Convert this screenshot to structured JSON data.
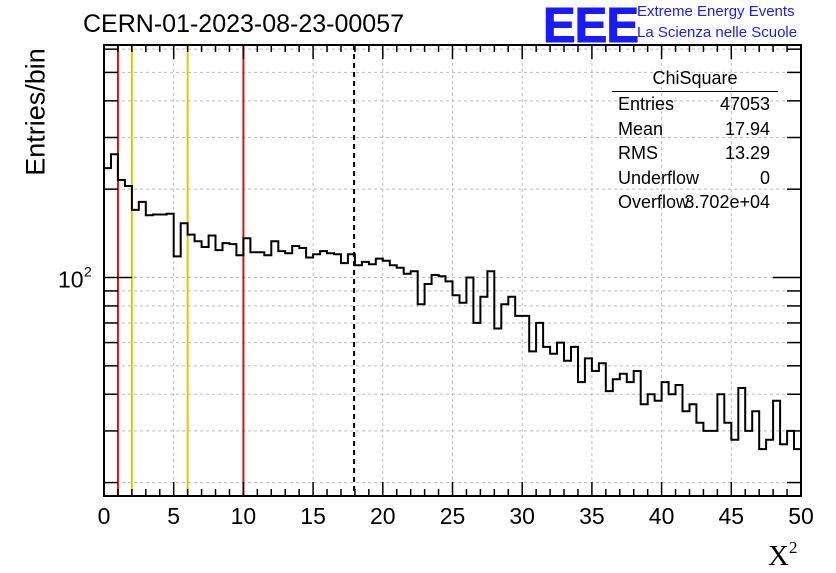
{
  "header": {
    "run_title": "CERN-01-2023-08-23-00057",
    "logo_text": "EEE",
    "logo_line1": "Extreme Energy Events",
    "logo_line2": "La Scienza nelle Scuole"
  },
  "stats_box": {
    "title": "ChiSquare",
    "rows": [
      {
        "key": "Entries",
        "value": "47053"
      },
      {
        "key": "Mean",
        "value": "17.94"
      },
      {
        "key": "RMS",
        "value": "13.29"
      },
      {
        "key": "Underflow",
        "value": "0"
      },
      {
        "key": "Overflow",
        "value": "3.702e+04"
      }
    ]
  },
  "colors": {
    "red_lines": "#dd1111",
    "yellow_lines": "#f2c200",
    "logo": "#1a1aff",
    "grid": "#bbbbbb"
  },
  "chart_data": {
    "type": "histogram",
    "title": "CERN-01-2023-08-23-00057",
    "xlabel": "X",
    "xlabel_superscript": "2",
    "ylabel": "Entries/bin",
    "xlim": [
      0,
      50
    ],
    "ylim": [
      18,
      620
    ],
    "y_scale": "log",
    "grid": true,
    "bin_width": 0.5,
    "x_ticks": [
      0,
      5,
      10,
      15,
      20,
      25,
      30,
      35,
      40,
      45,
      50
    ],
    "y_tick_label_base": "10",
    "y_tick_label_exponent": "2",
    "y_tick_label_value": 100,
    "values": [
      236,
      263,
      215,
      205,
      170,
      181,
      163,
      164,
      164,
      165,
      118,
      153,
      140,
      133,
      127,
      139,
      124,
      131,
      130,
      119,
      136,
      122,
      122,
      119,
      133,
      123,
      121,
      128,
      126,
      117,
      120,
      123,
      121,
      120,
      112,
      120,
      110,
      113,
      111,
      116,
      114,
      110,
      108,
      103,
      105,
      81,
      95,
      102,
      101,
      97,
      87,
      82,
      100,
      70,
      86,
      105,
      67,
      81,
      86,
      74,
      74,
      56,
      70,
      58,
      55,
      60,
      52,
      58,
      44,
      53,
      48,
      51,
      41,
      45,
      47,
      44,
      48,
      37,
      40,
      38,
      44,
      40,
      43,
      35,
      37,
      32,
      30,
      30,
      40,
      32,
      28,
      42,
      30,
      35,
      26,
      28,
      38,
      27,
      30,
      26
    ],
    "vertical_lines": [
      {
        "x": 1,
        "color": "#dd1111",
        "style": "solid"
      },
      {
        "x": 2,
        "color": "#f2c200",
        "style": "solid"
      },
      {
        "x": 6,
        "color": "#f2c200",
        "style": "solid"
      },
      {
        "x": 10,
        "color": "#dd1111",
        "style": "solid"
      },
      {
        "x": 17.94,
        "color": "#000000",
        "style": "dashed"
      }
    ]
  }
}
